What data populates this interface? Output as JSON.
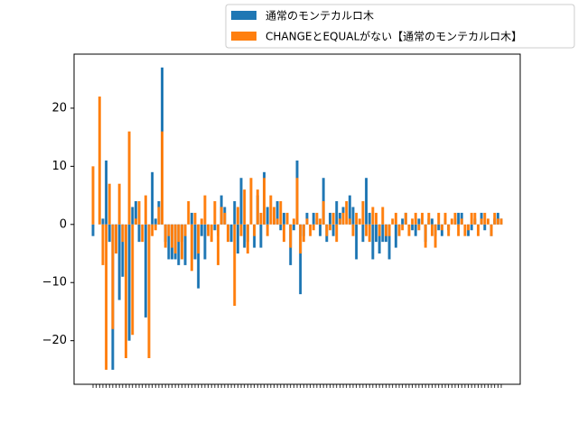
{
  "chart_data": {
    "type": "bar",
    "categories": [
      null,
      null,
      null,
      null,
      null,
      null,
      null,
      null,
      null,
      null,
      null,
      null,
      null,
      null,
      null,
      null,
      null,
      null,
      null,
      null,
      null,
      null,
      null,
      null,
      null,
      null,
      null,
      null,
      null,
      null,
      null,
      null,
      null,
      null,
      null,
      null,
      null,
      null,
      null,
      null,
      null,
      null,
      null,
      null,
      null,
      null,
      null,
      null,
      null,
      null,
      null,
      null,
      null,
      null,
      null,
      null,
      null,
      null,
      null,
      null,
      null,
      null,
      null,
      null,
      null,
      null,
      null,
      null,
      null,
      null,
      null,
      null,
      null,
      null,
      null,
      null,
      null,
      null,
      null,
      null,
      null,
      null,
      null,
      null,
      null,
      null,
      null,
      null,
      null,
      null,
      null,
      null,
      null,
      null,
      null,
      null,
      null,
      null,
      null,
      null,
      null,
      null,
      null,
      null,
      null,
      null,
      null,
      null,
      null,
      null,
      null,
      null,
      null,
      null,
      null,
      null,
      null,
      null,
      null,
      null,
      null,
      null,
      null,
      null,
      null
    ],
    "series": [
      {
        "name": "通常のモンテカルロ木",
        "color": "#1f77b4",
        "values": [
          -2,
          0,
          0,
          1,
          11,
          -3,
          -25,
          -5,
          -13,
          -9,
          0,
          -20,
          3,
          4,
          -3,
          0,
          -16,
          -2,
          9,
          1,
          4,
          27,
          -3,
          -6,
          -6,
          -6,
          -7,
          -3,
          -7,
          0,
          2,
          -6,
          -11,
          -2,
          -6,
          -1,
          0,
          -1,
          -2,
          5,
          3,
          -1,
          -3,
          4,
          -5,
          8,
          -4,
          -3,
          0,
          -4,
          5,
          -4,
          9,
          3,
          0,
          1,
          4,
          -1,
          2,
          0,
          -7,
          -1,
          11,
          -12,
          -2,
          2,
          0,
          2,
          1,
          -2,
          8,
          -3,
          2,
          -2,
          4,
          2,
          3,
          0,
          5,
          3,
          -6,
          0,
          -3,
          8,
          2,
          -6,
          -3,
          -5,
          -3,
          -3,
          -6,
          0,
          -4,
          -1,
          1,
          2,
          0,
          -1,
          -2,
          1,
          0,
          -3,
          1,
          1,
          -2,
          -1,
          -2,
          1,
          -1,
          0,
          1,
          2,
          2,
          0,
          -2,
          -1,
          1,
          -1,
          2,
          -1,
          0,
          -2,
          1,
          2,
          1
        ]
      },
      {
        "name": "CHANGEとEQUALがない【通常のモンテカルロ木】",
        "color": "#ff7f0e",
        "values": [
          10,
          0,
          22,
          -7,
          -25,
          7,
          -18,
          -5,
          7,
          -3,
          -23,
          16,
          -19,
          1,
          4,
          -3,
          5,
          -23,
          -2,
          -1,
          3,
          16,
          -4,
          -2,
          -4,
          -5,
          -3,
          -6,
          -2,
          4,
          -8,
          2,
          -5,
          1,
          5,
          -2,
          -3,
          4,
          -7,
          3,
          2,
          -3,
          0,
          -14,
          3,
          -2,
          6,
          -5,
          8,
          -2,
          6,
          2,
          8,
          -2,
          5,
          3,
          1,
          4,
          -3,
          2,
          -4,
          1,
          8,
          -5,
          -3,
          1,
          -2,
          -1,
          2,
          1,
          4,
          -2,
          -1,
          2,
          -3,
          1,
          2,
          4,
          1,
          -2,
          2,
          1,
          4,
          -2,
          -3,
          3,
          2,
          -2,
          3,
          -2,
          -2,
          1,
          2,
          -2,
          -1,
          2,
          -2,
          1,
          2,
          -1,
          2,
          -4,
          2,
          -2,
          -4,
          2,
          -1,
          2,
          -2,
          1,
          2,
          -2,
          1,
          -2,
          -1,
          2,
          2,
          -2,
          1,
          2,
          1,
          -2,
          2,
          1,
          1
        ]
      }
    ],
    "ylim": [
      -27.5,
      29.3
    ],
    "yticks": [
      {
        "value": -20,
        "label": "−20"
      },
      {
        "value": -10,
        "label": "−10"
      },
      0,
      10,
      20
    ],
    "legend": "upper right"
  }
}
